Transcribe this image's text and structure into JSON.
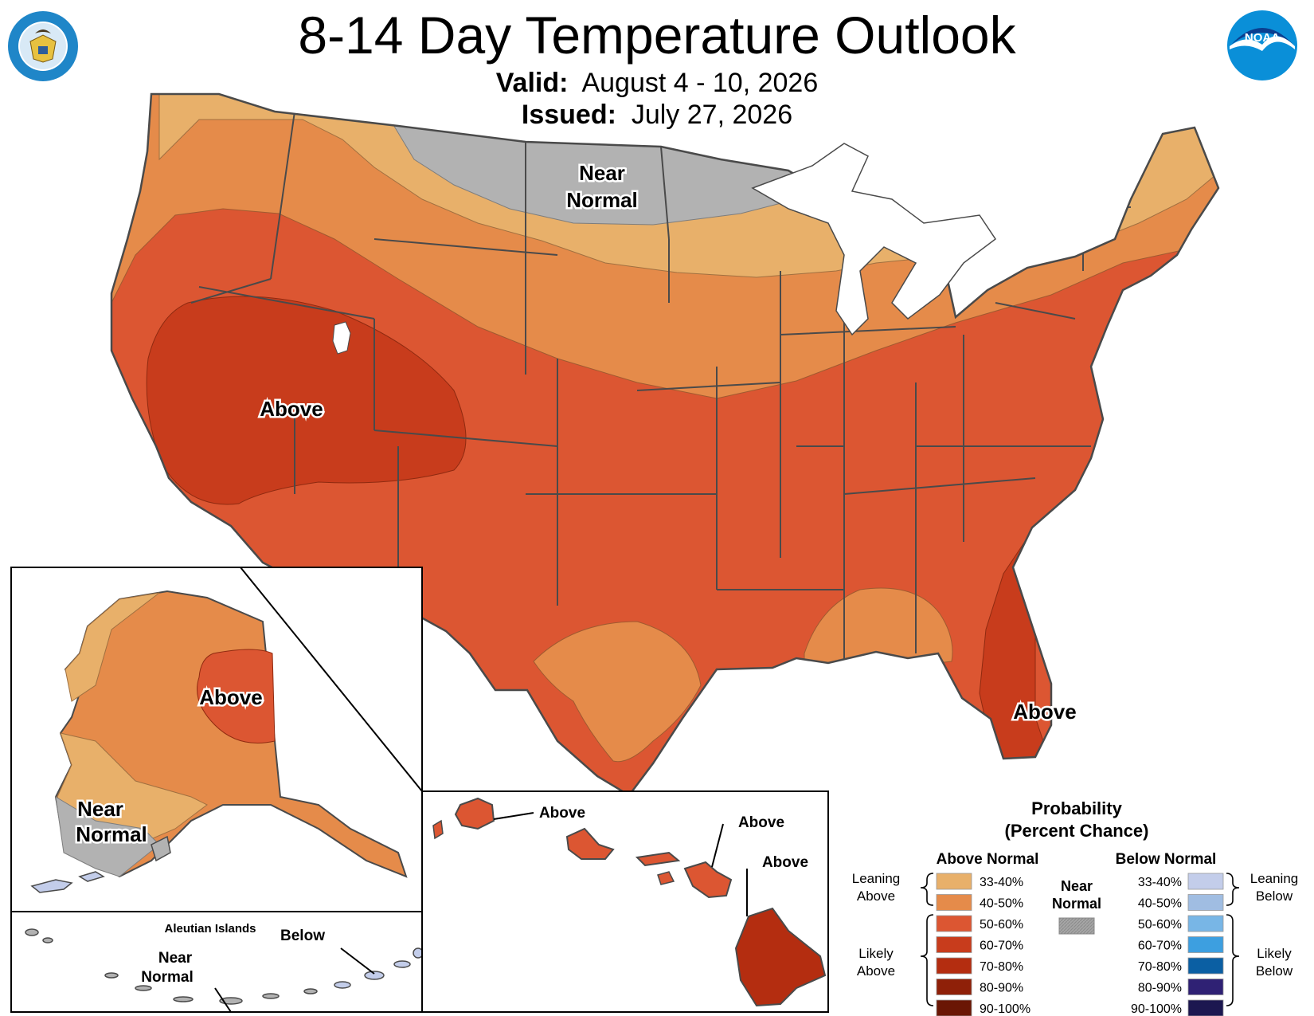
{
  "header": {
    "title": "8-14 Day Temperature Outlook",
    "valid_label": "Valid:",
    "valid_value": "August 4 - 10, 2026",
    "issued_label": "Issued:",
    "issued_value": "July 27, 2026",
    "left_logo_text": "DEPARTMENT OF COMMERCE · UNITED STATES OF AMERICA",
    "right_logo_text": "NOAA"
  },
  "map_labels": {
    "conus_near_normal_1": "Near",
    "conus_near_normal_2": "Normal",
    "conus_above_west": "Above",
    "conus_above_florida": "Above",
    "alaska_above": "Above",
    "alaska_near_normal_1": "Near",
    "alaska_near_normal_2": "Normal",
    "aleutian_title": "Aleutian Islands",
    "aleutian_below": "Below",
    "aleutian_near_normal_1": "Near",
    "aleutian_near_normal_2": "Normal",
    "hawaii_above_kauai": "Above",
    "hawaii_above_oahu": "Above",
    "hawaii_above_big_island": "Above"
  },
  "legend": {
    "title_1": "Probability",
    "title_2": "(Percent Chance)",
    "above_header": "Above Normal",
    "below_header": "Below Normal",
    "near_normal_1": "Near",
    "near_normal_2": "Normal",
    "leaning_above_1": "Leaning",
    "leaning_above_2": "Above",
    "likely_above_1": "Likely",
    "likely_above_2": "Above",
    "leaning_below_1": "Leaning",
    "leaning_below_2": "Below",
    "likely_below_1": "Likely",
    "likely_below_2": "Below",
    "above_bins": [
      {
        "label": "33-40%",
        "color": "#e8b06a"
      },
      {
        "label": "40-50%",
        "color": "#e58b4a"
      },
      {
        "label": "50-60%",
        "color": "#dc5632"
      },
      {
        "label": "60-70%",
        "color": "#c83c1c"
      },
      {
        "label": "70-80%",
        "color": "#b42d10"
      },
      {
        "label": "80-90%",
        "color": "#8f2008"
      },
      {
        "label": "90-100%",
        "color": "#6a1604"
      }
    ],
    "below_bins": [
      {
        "label": "33-40%",
        "color": "#c3cdea"
      },
      {
        "label": "40-50%",
        "color": "#a0bde2"
      },
      {
        "label": "50-60%",
        "color": "#78b6e6"
      },
      {
        "label": "60-70%",
        "color": "#3d9fe0"
      },
      {
        "label": "70-80%",
        "color": "#0b5fa3"
      },
      {
        "label": "80-90%",
        "color": "#2f2174"
      },
      {
        "label": "90-100%",
        "color": "#1c1750"
      }
    ],
    "near_normal_color": "#b2b2b2"
  }
}
